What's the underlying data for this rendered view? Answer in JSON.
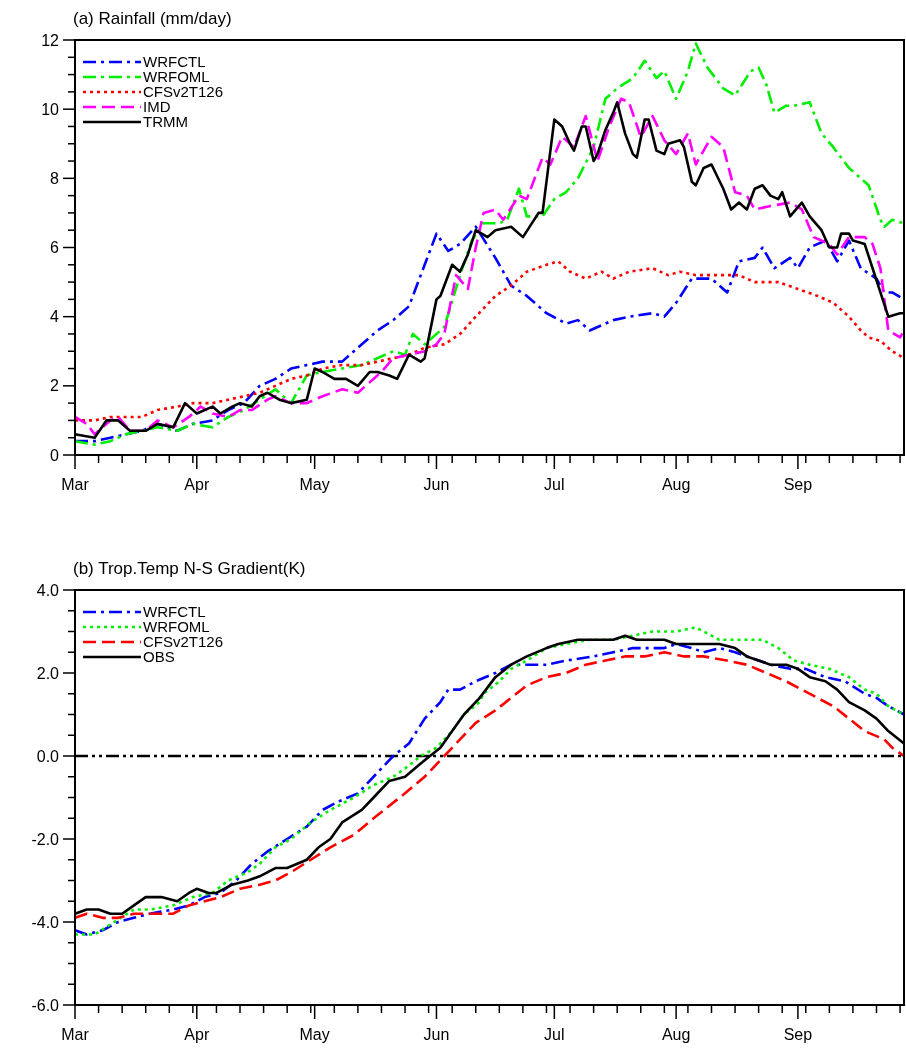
{
  "chart_data": [
    {
      "type": "line",
      "title": "(a) Rainfall (mm/day)",
      "legend": "top left",
      "xlim": [
        "--03-01",
        "--09-28"
      ],
      "xticks": [
        {
          "value": "--03-01",
          "label": "Mar"
        },
        {
          "value": "--03-07",
          "label": null
        },
        {
          "value": "--03-13",
          "label": null
        },
        {
          "value": "--03-19",
          "label": null
        },
        {
          "value": "--03-25",
          "label": null
        },
        {
          "value": "--03-31",
          "label": null
        },
        {
          "value": "--04-01",
          "label": "Apr"
        },
        {
          "value": "--04-06",
          "label": null
        },
        {
          "value": "--04-12",
          "label": null
        },
        {
          "value": "--04-18",
          "label": null
        },
        {
          "value": "--04-24",
          "label": null
        },
        {
          "value": "--04-30",
          "label": null
        },
        {
          "value": "--05-01",
          "label": "May"
        },
        {
          "value": "--05-06",
          "label": null
        },
        {
          "value": "--05-12",
          "label": null
        },
        {
          "value": "--05-18",
          "label": null
        },
        {
          "value": "--05-24",
          "label": null
        },
        {
          "value": "--05-30",
          "label": null
        },
        {
          "value": "--06-01",
          "label": "Jun"
        },
        {
          "value": "--06-05",
          "label": null
        },
        {
          "value": "--06-11",
          "label": null
        },
        {
          "value": "--06-17",
          "label": null
        },
        {
          "value": "--06-23",
          "label": null
        },
        {
          "value": "--06-29",
          "label": null
        },
        {
          "value": "--07-01",
          "label": "Jul"
        },
        {
          "value": "--07-05",
          "label": null
        },
        {
          "value": "--07-11",
          "label": null
        },
        {
          "value": "--07-17",
          "label": null
        },
        {
          "value": "--07-23",
          "label": null
        },
        {
          "value": "--07-29",
          "label": null
        },
        {
          "value": "--08-01",
          "label": "Aug"
        },
        {
          "value": "--08-04",
          "label": null
        },
        {
          "value": "--08-10",
          "label": null
        },
        {
          "value": "--08-16",
          "label": null
        },
        {
          "value": "--08-22",
          "label": null
        },
        {
          "value": "--08-28",
          "label": null
        },
        {
          "value": "--09-01",
          "label": "Sep"
        },
        {
          "value": "--09-03",
          "label": null
        },
        {
          "value": "--09-09",
          "label": null
        },
        {
          "value": "--09-15",
          "label": null
        },
        {
          "value": "--09-21",
          "label": null
        },
        {
          "value": "--09-27",
          "label": null
        }
      ],
      "ylim": [
        0,
        12
      ],
      "yticks": [
        0,
        {
          "value": 0.5,
          "label": null
        },
        {
          "value": 1,
          "label": null
        },
        {
          "value": 1.5,
          "label": null
        },
        2,
        {
          "value": 2.5,
          "label": null
        },
        {
          "value": 3,
          "label": null
        },
        {
          "value": 3.5,
          "label": null
        },
        4,
        {
          "value": 4.5,
          "label": null
        },
        {
          "value": 5,
          "label": null
        },
        {
          "value": 5.5,
          "label": null
        },
        6,
        {
          "value": 6.5,
          "label": null
        },
        {
          "value": 7,
          "label": null
        },
        {
          "value": 7.5,
          "label": null
        },
        8,
        {
          "value": 8.5,
          "label": null
        },
        {
          "value": 9,
          "label": null
        },
        {
          "value": 9.5,
          "label": null
        },
        10,
        {
          "value": 10.5,
          "label": null
        },
        {
          "value": 11,
          "label": null
        },
        {
          "value": 11.5,
          "label": null
        },
        12
      ],
      "series": [
        {
          "name": "WRFCTL",
          "color": "#0000ff",
          "line_style": "dashdot",
          "x": [
            "--03-01",
            "--03-06",
            "--03-10",
            "--03-14",
            "--03-18",
            "--03-22",
            "--03-27",
            "--03-31",
            "--04-05",
            "--04-09",
            "--04-13",
            "--04-17",
            "--04-21",
            "--04-25",
            "--04-29",
            "--05-03",
            "--05-08",
            "--05-13",
            "--05-17",
            "--05-21",
            "--05-25",
            "--05-29",
            "--06-01",
            "--06-04",
            "--06-07",
            "--06-11",
            "--06-16",
            "--06-20",
            "--06-24",
            "--06-29",
            "--07-04",
            "--07-07",
            "--07-10",
            "--07-16",
            "--07-20",
            "--07-26",
            "--07-29",
            "--08-01",
            "--08-05",
            "--08-10",
            "--08-14",
            "--08-17",
            "--08-21",
            "--08-23",
            "--08-26",
            "--08-30",
            "--09-01",
            "--09-04",
            "--09-08",
            "--09-11",
            "--09-14",
            "--09-17",
            "--09-21",
            "--09-23",
            "--09-25",
            "--09-28"
          ],
          "values": [
            0.4,
            0.4,
            0.5,
            0.6,
            0.7,
            0.9,
            0.7,
            0.9,
            1.0,
            1.3,
            1.5,
            2.0,
            2.2,
            2.5,
            2.6,
            2.7,
            2.7,
            3.2,
            3.6,
            3.9,
            4.3,
            5.5,
            6.4,
            5.9,
            6.1,
            6.6,
            5.7,
            4.9,
            4.6,
            4.1,
            3.8,
            3.9,
            3.6,
            3.9,
            4.0,
            4.1,
            4.0,
            4.4,
            5.1,
            5.1,
            4.7,
            5.6,
            5.7,
            6.0,
            5.4,
            5.7,
            5.4,
            6.0,
            6.2,
            5.6,
            6.2,
            5.4,
            5.1,
            4.7,
            4.7,
            4.5
          ]
        },
        {
          "name": "WRFOML",
          "color": "#00ee00",
          "line_style": "dashdot",
          "x": [
            "--03-01",
            "--03-06",
            "--03-10",
            "--03-14",
            "--03-18",
            "--03-22",
            "--03-27",
            "--03-31",
            "--04-05",
            "--04-09",
            "--04-13",
            "--04-17",
            "--04-21",
            "--04-25",
            "--04-29",
            "--05-03",
            "--05-08",
            "--05-13",
            "--05-17",
            "--05-21",
            "--05-24",
            "--05-26",
            "--05-29",
            "--06-03",
            "--06-07",
            "--06-10",
            "--06-13",
            "--06-17",
            "--06-19",
            "--06-22",
            "--06-24",
            "--06-28",
            "--07-01",
            "--07-04",
            "--07-07",
            "--07-11",
            "--07-14",
            "--07-17",
            "--07-21",
            "--07-24",
            "--07-27",
            "--07-29",
            "--08-01",
            "--08-04",
            "--08-06",
            "--08-09",
            "--08-13",
            "--08-16",
            "--08-20",
            "--08-22",
            "--08-24",
            "--08-26",
            "--08-29",
            "--08-31",
            "--09-04",
            "--09-07",
            "--09-10",
            "--09-14",
            "--09-17",
            "--09-19",
            "--09-22",
            "--09-23",
            "--09-25",
            "--09-28"
          ],
          "values": [
            0.4,
            0.3,
            0.4,
            0.6,
            0.7,
            0.8,
            0.7,
            0.9,
            0.8,
            1.1,
            1.3,
            1.6,
            1.9,
            1.5,
            2.3,
            2.4,
            2.5,
            2.6,
            2.8,
            3.0,
            2.9,
            3.5,
            3.2,
            3.7,
            5.2,
            6.2,
            6.7,
            6.7,
            6.8,
            7.7,
            6.9,
            6.9,
            7.4,
            7.6,
            8.0,
            8.9,
            10.3,
            10.6,
            10.9,
            11.4,
            10.9,
            11.1,
            10.3,
            11.1,
            11.9,
            11.2,
            10.6,
            10.4,
            11.1,
            11.2,
            10.7,
            9.9,
            10.1,
            10.1,
            10.2,
            9.3,
            8.9,
            8.3,
            8.0,
            7.8,
            6.8,
            6.6,
            6.8,
            6.7
          ]
        },
        {
          "name": "CFSv2T126",
          "color": "#ff0000",
          "line_style": "dotted",
          "x": [
            "--03-01",
            "--03-06",
            "--03-10",
            "--03-14",
            "--03-18",
            "--03-22",
            "--03-27",
            "--03-31",
            "--04-05",
            "--04-09",
            "--04-13",
            "--04-17",
            "--04-21",
            "--04-25",
            "--04-29",
            "--05-03",
            "--05-08",
            "--05-13",
            "--05-17",
            "--05-21",
            "--05-25",
            "--05-29",
            "--06-03",
            "--06-07",
            "--06-11",
            "--06-16",
            "--06-20",
            "--06-24",
            "--06-29",
            "--07-02",
            "--07-05",
            "--07-09",
            "--07-13",
            "--07-16",
            "--07-20",
            "--07-26",
            "--07-30",
            "--08-02",
            "--08-06",
            "--08-12",
            "--08-17",
            "--08-21",
            "--08-27",
            "--09-01",
            "--09-06",
            "--09-10",
            "--09-14",
            "--09-17",
            "--09-19",
            "--09-22",
            "--09-25",
            "--09-28"
          ],
          "values": [
            1.0,
            1.0,
            1.1,
            1.1,
            1.1,
            1.3,
            1.4,
            1.5,
            1.5,
            1.6,
            1.7,
            1.8,
            2.0,
            2.2,
            2.3,
            2.5,
            2.6,
            2.6,
            2.7,
            2.8,
            2.9,
            3.1,
            3.2,
            3.5,
            4.0,
            4.6,
            4.9,
            5.3,
            5.5,
            5.6,
            5.3,
            5.1,
            5.3,
            5.1,
            5.3,
            5.4,
            5.2,
            5.3,
            5.2,
            5.2,
            5.2,
            5.0,
            5.0,
            4.8,
            4.6,
            4.4,
            4.0,
            3.6,
            3.4,
            3.3,
            3.0,
            2.8
          ]
        },
        {
          "name": "IMD",
          "color": "#ff00ff",
          "line_style": "dashed",
          "x": [
            "--03-01",
            "--03-04",
            "--03-06",
            "--03-10",
            "--03-12",
            "--03-15",
            "--03-19",
            "--03-22",
            "--03-26",
            "--03-30",
            "--04-02",
            "--04-05",
            "--04-09",
            "--04-12",
            "--04-15",
            "--04-19",
            "--04-21",
            "--04-25",
            "--04-29",
            "--05-03",
            "--05-08",
            "--05-12",
            "--05-15",
            "--05-18",
            "--05-21",
            "--05-25",
            "--05-29",
            "--06-01",
            "--06-03",
            "--06-06",
            "--06-09",
            "--06-11",
            "--06-13",
            "--06-16",
            "--06-18",
            "--06-22",
            "--06-24",
            "--06-28",
            "--06-30",
            "--07-03",
            "--07-06",
            "--07-09",
            "--07-12",
            "--07-15",
            "--07-18",
            "--07-20",
            "--07-23",
            "--07-26",
            "--07-29",
            "--08-01",
            "--08-04",
            "--08-06",
            "--08-10",
            "--08-13",
            "--08-16",
            "--08-19",
            "--08-21",
            "--08-25",
            "--08-30",
            "--09-02",
            "--09-05",
            "--09-09",
            "--09-11",
            "--09-14",
            "--09-18",
            "--09-20",
            "--09-22",
            "--09-24",
            "--09-27",
            "--09-28"
          ],
          "values": [
            1.1,
            0.9,
            0.6,
            1.0,
            1.1,
            0.7,
            0.7,
            1.0,
            0.8,
            1.1,
            1.4,
            1.2,
            1.1,
            1.3,
            1.3,
            1.6,
            1.7,
            1.5,
            1.5,
            1.7,
            1.9,
            1.8,
            2.1,
            2.4,
            2.8,
            2.9,
            3.0,
            3.2,
            3.5,
            5.2,
            4.8,
            6.0,
            7.0,
            7.1,
            6.8,
            7.5,
            7.4,
            8.6,
            8.4,
            9.2,
            8.9,
            9.8,
            8.5,
            9.5,
            10.3,
            10.2,
            9.2,
            9.8,
            9.1,
            8.7,
            9.3,
            8.4,
            9.2,
            8.9,
            7.6,
            7.5,
            7.1,
            7.2,
            7.3,
            7.1,
            6.3,
            6.1,
            5.8,
            6.3,
            6.3,
            6.1,
            5.4,
            3.6,
            3.4,
            3.6
          ]
        },
        {
          "name": "TRMM",
          "color": "#000000",
          "line_style": "solid",
          "x": [
            "--03-01",
            "--03-06",
            "--03-09",
            "--03-12",
            "--03-15",
            "--03-19",
            "--03-22",
            "--03-26",
            "--03-29",
            "--04-01",
            "--04-05",
            "--04-07",
            "--04-10",
            "--04-12",
            "--04-15",
            "--04-17",
            "--04-19",
            "--04-22",
            "--04-25",
            "--04-29",
            "--05-01",
            "--05-03",
            "--05-06",
            "--05-09",
            "--05-12",
            "--05-15",
            "--05-17",
            "--05-20",
            "--05-22",
            "--05-25",
            "--05-28",
            "--05-29",
            "--06-01",
            "--06-02",
            "--06-05",
            "--06-07",
            "--06-09",
            "--06-11",
            "--06-14",
            "--06-16",
            "--06-20",
            "--06-23",
            "--06-27",
            "--06-28",
            "--07-01",
            "--07-03",
            "--07-05",
            "--07-06",
            "--07-08",
            "--07-09",
            "--07-11",
            "--07-12",
            "--07-14",
            "--07-16",
            "--07-17",
            "--07-19",
            "--07-21",
            "--07-22",
            "--07-24",
            "--07-25",
            "--07-27",
            "--07-29",
            "--07-30",
            "--08-02",
            "--08-03",
            "--08-05",
            "--08-06",
            "--08-08",
            "--08-10",
            "--08-13",
            "--08-15",
            "--08-17",
            "--08-19",
            "--08-21",
            "--08-23",
            "--08-25",
            "--08-27",
            "--08-28",
            "--08-30",
            "--09-02",
            "--09-04",
            "--09-07",
            "--09-09",
            "--09-11",
            "--09-12",
            "--09-14",
            "--09-15",
            "--09-18",
            "--09-20",
            "--09-22",
            "--09-24",
            "--09-27",
            "--09-28"
          ],
          "values": [
            0.6,
            0.5,
            1.0,
            1.0,
            0.7,
            0.7,
            0.9,
            0.8,
            1.5,
            1.2,
            1.4,
            1.2,
            1.4,
            1.5,
            1.4,
            1.7,
            1.8,
            1.6,
            1.5,
            1.6,
            2.5,
            2.4,
            2.2,
            2.2,
            2.0,
            2.4,
            2.4,
            2.3,
            2.2,
            2.9,
            2.7,
            2.8,
            4.5,
            4.6,
            5.5,
            5.3,
            5.8,
            6.5,
            6.3,
            6.5,
            6.6,
            6.3,
            7.0,
            7.0,
            9.7,
            9.5,
            9.0,
            8.8,
            9.5,
            9.5,
            8.5,
            8.7,
            9.4,
            9.9,
            10.2,
            9.3,
            8.7,
            8.6,
            9.7,
            9.7,
            8.8,
            8.7,
            9.0,
            9.1,
            8.9,
            7.9,
            7.8,
            8.3,
            8.4,
            7.7,
            7.1,
            7.3,
            7.1,
            7.7,
            7.8,
            7.5,
            7.4,
            7.6,
            6.9,
            7.3,
            6.9,
            6.5,
            6.0,
            6.0,
            6.4,
            6.4,
            6.2,
            6.1,
            5.4,
            4.7,
            4.0,
            4.1,
            4.1
          ]
        }
      ]
    },
    {
      "type": "line",
      "title": "(b) Trop.Temp N-S Gradient(K)",
      "legend": "top left",
      "xlim": [
        "--03-01",
        "--09-28"
      ],
      "xticks": [
        {
          "value": "--03-01",
          "label": "Mar"
        },
        {
          "value": "--03-07",
          "label": null
        },
        {
          "value": "--03-13",
          "label": null
        },
        {
          "value": "--03-19",
          "label": null
        },
        {
          "value": "--03-25",
          "label": null
        },
        {
          "value": "--03-31",
          "label": null
        },
        {
          "value": "--04-01",
          "label": "Apr"
        },
        {
          "value": "--04-06",
          "label": null
        },
        {
          "value": "--04-12",
          "label": null
        },
        {
          "value": "--04-18",
          "label": null
        },
        {
          "value": "--04-24",
          "label": null
        },
        {
          "value": "--04-30",
          "label": null
        },
        {
          "value": "--05-01",
          "label": "May"
        },
        {
          "value": "--05-06",
          "label": null
        },
        {
          "value": "--05-12",
          "label": null
        },
        {
          "value": "--05-18",
          "label": null
        },
        {
          "value": "--05-24",
          "label": null
        },
        {
          "value": "--05-30",
          "label": null
        },
        {
          "value": "--06-01",
          "label": "Jun"
        },
        {
          "value": "--06-05",
          "label": null
        },
        {
          "value": "--06-11",
          "label": null
        },
        {
          "value": "--06-17",
          "label": null
        },
        {
          "value": "--06-23",
          "label": null
        },
        {
          "value": "--06-29",
          "label": null
        },
        {
          "value": "--07-01",
          "label": "Jul"
        },
        {
          "value": "--07-05",
          "label": null
        },
        {
          "value": "--07-11",
          "label": null
        },
        {
          "value": "--07-17",
          "label": null
        },
        {
          "value": "--07-23",
          "label": null
        },
        {
          "value": "--07-29",
          "label": null
        },
        {
          "value": "--08-01",
          "label": "Aug"
        },
        {
          "value": "--08-04",
          "label": null
        },
        {
          "value": "--08-10",
          "label": null
        },
        {
          "value": "--08-16",
          "label": null
        },
        {
          "value": "--08-22",
          "label": null
        },
        {
          "value": "--08-28",
          "label": null
        },
        {
          "value": "--09-01",
          "label": "Sep"
        },
        {
          "value": "--09-03",
          "label": null
        },
        {
          "value": "--09-09",
          "label": null
        },
        {
          "value": "--09-15",
          "label": null
        },
        {
          "value": "--09-21",
          "label": null
        },
        {
          "value": "--09-27",
          "label": null
        }
      ],
      "ylim": [
        -6,
        4
      ],
      "yticks": [
        {
          "value": -6,
          "label": "-6.0"
        },
        {
          "value": -5.5,
          "label": null
        },
        {
          "value": -5,
          "label": null
        },
        {
          "value": -4.5,
          "label": null
        },
        {
          "value": -4,
          "label": "-4.0"
        },
        {
          "value": -3.5,
          "label": null
        },
        {
          "value": -3,
          "label": null
        },
        {
          "value": -2.5,
          "label": null
        },
        {
          "value": -2,
          "label": "-2.0"
        },
        {
          "value": -1.5,
          "label": null
        },
        {
          "value": -1,
          "label": null
        },
        {
          "value": -0.5,
          "label": null
        },
        {
          "value": 0,
          "label": "0.0"
        },
        {
          "value": 0.5,
          "label": null
        },
        {
          "value": 1,
          "label": null
        },
        {
          "value": 1.5,
          "label": null
        },
        {
          "value": 2,
          "label": "2.0"
        },
        {
          "value": 2.5,
          "label": null
        },
        {
          "value": 3,
          "label": null
        },
        {
          "value": 3.5,
          "label": null
        },
        {
          "value": 4,
          "label": "4.0"
        }
      ],
      "ref_lines": [
        {
          "axis": "y",
          "value": 0,
          "label": null,
          "color": "#000000",
          "line_style": "dashdotdot"
        }
      ],
      "series": [
        {
          "name": "WRFCTL",
          "color": "#0000ff",
          "line_style": "dashdot",
          "x": [
            "--03-01",
            "--03-04",
            "--03-08",
            "--03-12",
            "--03-16",
            "--03-20",
            "--03-26",
            "--03-30",
            "--04-03",
            "--04-07",
            "--04-11",
            "--04-15",
            "--04-19",
            "--04-24",
            "--04-29",
            "--05-03",
            "--05-07",
            "--05-12",
            "--05-16",
            "--05-21",
            "--05-25",
            "--05-29",
            "--06-02",
            "--06-04",
            "--06-07",
            "--06-11",
            "--06-16",
            "--06-20",
            "--06-23",
            "--06-29",
            "--07-04",
            "--07-11",
            "--07-16",
            "--07-21",
            "--07-26",
            "--07-29",
            "--08-01",
            "--08-05",
            "--08-08",
            "--08-12",
            "--08-16",
            "--08-19",
            "--08-22",
            "--08-25",
            "--08-30",
            "--09-03",
            "--09-08",
            "--09-13",
            "--09-18",
            "--09-21",
            "--09-24",
            "--09-28"
          ],
          "values": [
            -4.2,
            -4.3,
            -4.2,
            -4.0,
            -3.9,
            -3.8,
            -3.7,
            -3.6,
            -3.4,
            -3.3,
            -3.0,
            -2.6,
            -2.3,
            -2.0,
            -1.7,
            -1.3,
            -1.1,
            -0.9,
            -0.5,
            0.0,
            0.3,
            0.9,
            1.3,
            1.6,
            1.6,
            1.8,
            2.0,
            2.2,
            2.2,
            2.2,
            2.3,
            2.4,
            2.5,
            2.6,
            2.6,
            2.6,
            2.7,
            2.6,
            2.5,
            2.6,
            2.5,
            2.4,
            2.3,
            2.2,
            2.1,
            2.1,
            1.9,
            1.8,
            1.5,
            1.4,
            1.2,
            1.0
          ]
        },
        {
          "name": "WRFOML",
          "color": "#00ee00",
          "line_style": "dotted",
          "x": [
            "--03-01",
            "--03-06",
            "--03-11",
            "--03-16",
            "--03-20",
            "--03-26",
            "--03-31",
            "--04-05",
            "--04-09",
            "--04-14",
            "--04-17",
            "--04-21",
            "--04-25",
            "--04-30",
            "--05-05",
            "--05-11",
            "--05-16",
            "--05-21",
            "--05-24",
            "--05-28",
            "--06-01",
            "--06-05",
            "--06-08",
            "--06-12",
            "--06-13",
            "--06-17",
            "--06-20",
            "--06-24",
            "--06-29",
            "--07-04",
            "--07-10",
            "--07-16",
            "--07-21",
            "--07-26",
            "--08-01",
            "--08-06",
            "--08-12",
            "--08-18",
            "--08-23",
            "--08-27",
            "--08-31",
            "--09-04",
            "--09-09",
            "--09-14",
            "--09-18",
            "--09-21",
            "--09-24",
            "--09-28"
          ],
          "values": [
            -4.3,
            -4.3,
            -4.0,
            -3.7,
            -3.7,
            -3.6,
            -3.4,
            -3.3,
            -3.0,
            -2.8,
            -2.6,
            -2.2,
            -2.0,
            -1.6,
            -1.3,
            -1.0,
            -0.7,
            -0.5,
            -0.3,
            0.0,
            0.2,
            0.6,
            1.0,
            1.3,
            1.5,
            1.8,
            2.1,
            2.3,
            2.6,
            2.7,
            2.8,
            2.8,
            2.9,
            3.0,
            3.0,
            3.1,
            2.8,
            2.8,
            2.8,
            2.6,
            2.3,
            2.2,
            2.1,
            1.9,
            1.6,
            1.5,
            1.2,
            1.0
          ]
        },
        {
          "name": "CFSv2T126",
          "color": "#ff0000",
          "line_style": "dashed",
          "x": [
            "--03-01",
            "--03-04",
            "--03-08",
            "--03-12",
            "--03-16",
            "--03-20",
            "--03-26",
            "--03-30",
            "--04-03",
            "--04-07",
            "--04-12",
            "--04-17",
            "--04-21",
            "--04-25",
            "--04-30",
            "--05-05",
            "--05-11",
            "--05-16",
            "--05-20",
            "--05-24",
            "--05-29",
            "--06-03",
            "--06-07",
            "--06-11",
            "--06-16",
            "--06-20",
            "--06-24",
            "--06-29",
            "--07-04",
            "--07-09",
            "--07-14",
            "--07-19",
            "--07-24",
            "--07-29",
            "--08-03",
            "--08-08",
            "--08-14",
            "--08-19",
            "--08-24",
            "--08-29",
            "--09-02",
            "--09-06",
            "--09-10",
            "--09-14",
            "--09-18",
            "--09-23",
            "--09-25",
            "--09-28"
          ],
          "values": [
            -3.9,
            -3.8,
            -3.9,
            -3.9,
            -3.8,
            -3.8,
            -3.8,
            -3.6,
            -3.5,
            -3.4,
            -3.2,
            -3.1,
            -3.0,
            -2.8,
            -2.5,
            -2.2,
            -1.9,
            -1.5,
            -1.2,
            -0.9,
            -0.5,
            0.0,
            0.4,
            0.8,
            1.1,
            1.4,
            1.7,
            1.9,
            2.0,
            2.2,
            2.3,
            2.4,
            2.4,
            2.5,
            2.4,
            2.4,
            2.3,
            2.2,
            2.0,
            1.8,
            1.6,
            1.4,
            1.2,
            0.9,
            0.6,
            0.4,
            0.2,
            0.0
          ]
        },
        {
          "name": "OBS",
          "color": "#000000",
          "line_style": "solid",
          "x": [
            "--03-01",
            "--03-04",
            "--03-07",
            "--03-10",
            "--03-13",
            "--03-16",
            "--03-19",
            "--03-23",
            "--03-27",
            "--03-30",
            "--04-01",
            "--04-04",
            "--04-06",
            "--04-10",
            "--04-14",
            "--04-17",
            "--04-21",
            "--04-24",
            "--04-29",
            "--05-02",
            "--05-05",
            "--05-08",
            "--05-13",
            "--05-16",
            "--05-20",
            "--05-24",
            "--05-29",
            "--06-02",
            "--06-05",
            "--06-08",
            "--06-12",
            "--06-16",
            "--06-20",
            "--06-24",
            "--06-29",
            "--07-02",
            "--07-07",
            "--07-10",
            "--07-12",
            "--07-16",
            "--07-19",
            "--07-22",
            "--07-26",
            "--07-29",
            "--08-01",
            "--08-05",
            "--08-08",
            "--08-12",
            "--08-16",
            "--08-19",
            "--08-22",
            "--08-25",
            "--08-29",
            "--09-01",
            "--09-04",
            "--09-08",
            "--09-11",
            "--09-14",
            "--09-18",
            "--09-21",
            "--09-24",
            "--09-28"
          ],
          "values": [
            -3.8,
            -3.7,
            -3.7,
            -3.8,
            -3.8,
            -3.6,
            -3.4,
            -3.4,
            -3.5,
            -3.3,
            -3.2,
            -3.3,
            -3.3,
            -3.1,
            -3.0,
            -2.9,
            -2.7,
            -2.7,
            -2.5,
            -2.2,
            -2.0,
            -1.6,
            -1.3,
            -1.0,
            -0.6,
            -0.5,
            -0.1,
            0.2,
            0.6,
            1.0,
            1.4,
            1.9,
            2.2,
            2.4,
            2.6,
            2.7,
            2.8,
            2.8,
            2.8,
            2.8,
            2.9,
            2.8,
            2.8,
            2.8,
            2.7,
            2.7,
            2.7,
            2.7,
            2.6,
            2.4,
            2.3,
            2.2,
            2.2,
            2.1,
            1.9,
            1.8,
            1.6,
            1.3,
            1.1,
            0.9,
            0.6,
            0.3
          ]
        }
      ]
    }
  ]
}
